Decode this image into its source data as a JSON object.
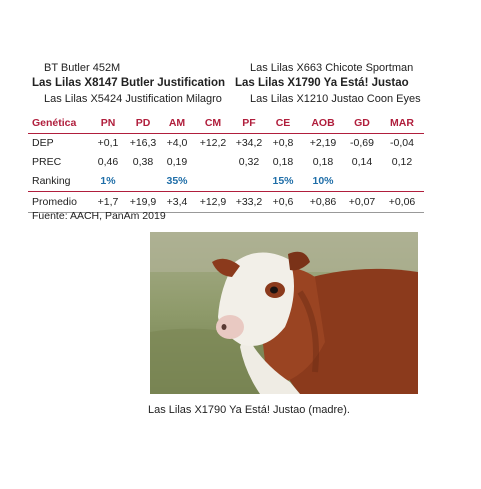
{
  "pedigree": {
    "sire_sire": "BT Butler 452M",
    "sire": "Las Lilas X8147 Butler Justification",
    "sire_dam": "Las Lilas X5424 Justification Milagro",
    "dam_sire": "Las Lilas X663 Chicote Sportman",
    "dam": "Las Lilas X1790 Ya Está! Justao",
    "dam_dam": "Las Lilas X1210 Justao Coon Eyes"
  },
  "table": {
    "header_label": "Genética",
    "columns": [
      "PN",
      "PD",
      "AM",
      "CM",
      "PF",
      "CE",
      "AOB",
      "GD",
      "MAR"
    ],
    "rows": [
      {
        "label": "DEP",
        "values": [
          "+0,1",
          "+16,3",
          "+4,0",
          "+12,2",
          "+34,2",
          "+0,8",
          "+2,19",
          "-0,69",
          "-0,04"
        ]
      },
      {
        "label": "PREC",
        "values": [
          "0,46",
          "0,38",
          "0,19",
          "",
          "0,32",
          "0,18",
          "0,18",
          "0,14",
          "0,12"
        ]
      },
      {
        "label": "Ranking",
        "values": [
          "1%",
          "",
          "35%",
          "",
          "",
          "15%",
          "10%",
          "",
          ""
        ]
      },
      {
        "label": "Promedio",
        "values": [
          "+1,7",
          "+19,9",
          "+3,4",
          "+12,9",
          "+33,2",
          "+0,6",
          "+0,86",
          "+0,07",
          "+0,06"
        ]
      }
    ]
  },
  "source": "Fuente: AACH, PanAm 2019",
  "caption": "Las Lilas X1790 Ya Está! Justao (madre).",
  "colors": {
    "accent": "#b01e3c",
    "ranking": "#1f6ea8"
  }
}
